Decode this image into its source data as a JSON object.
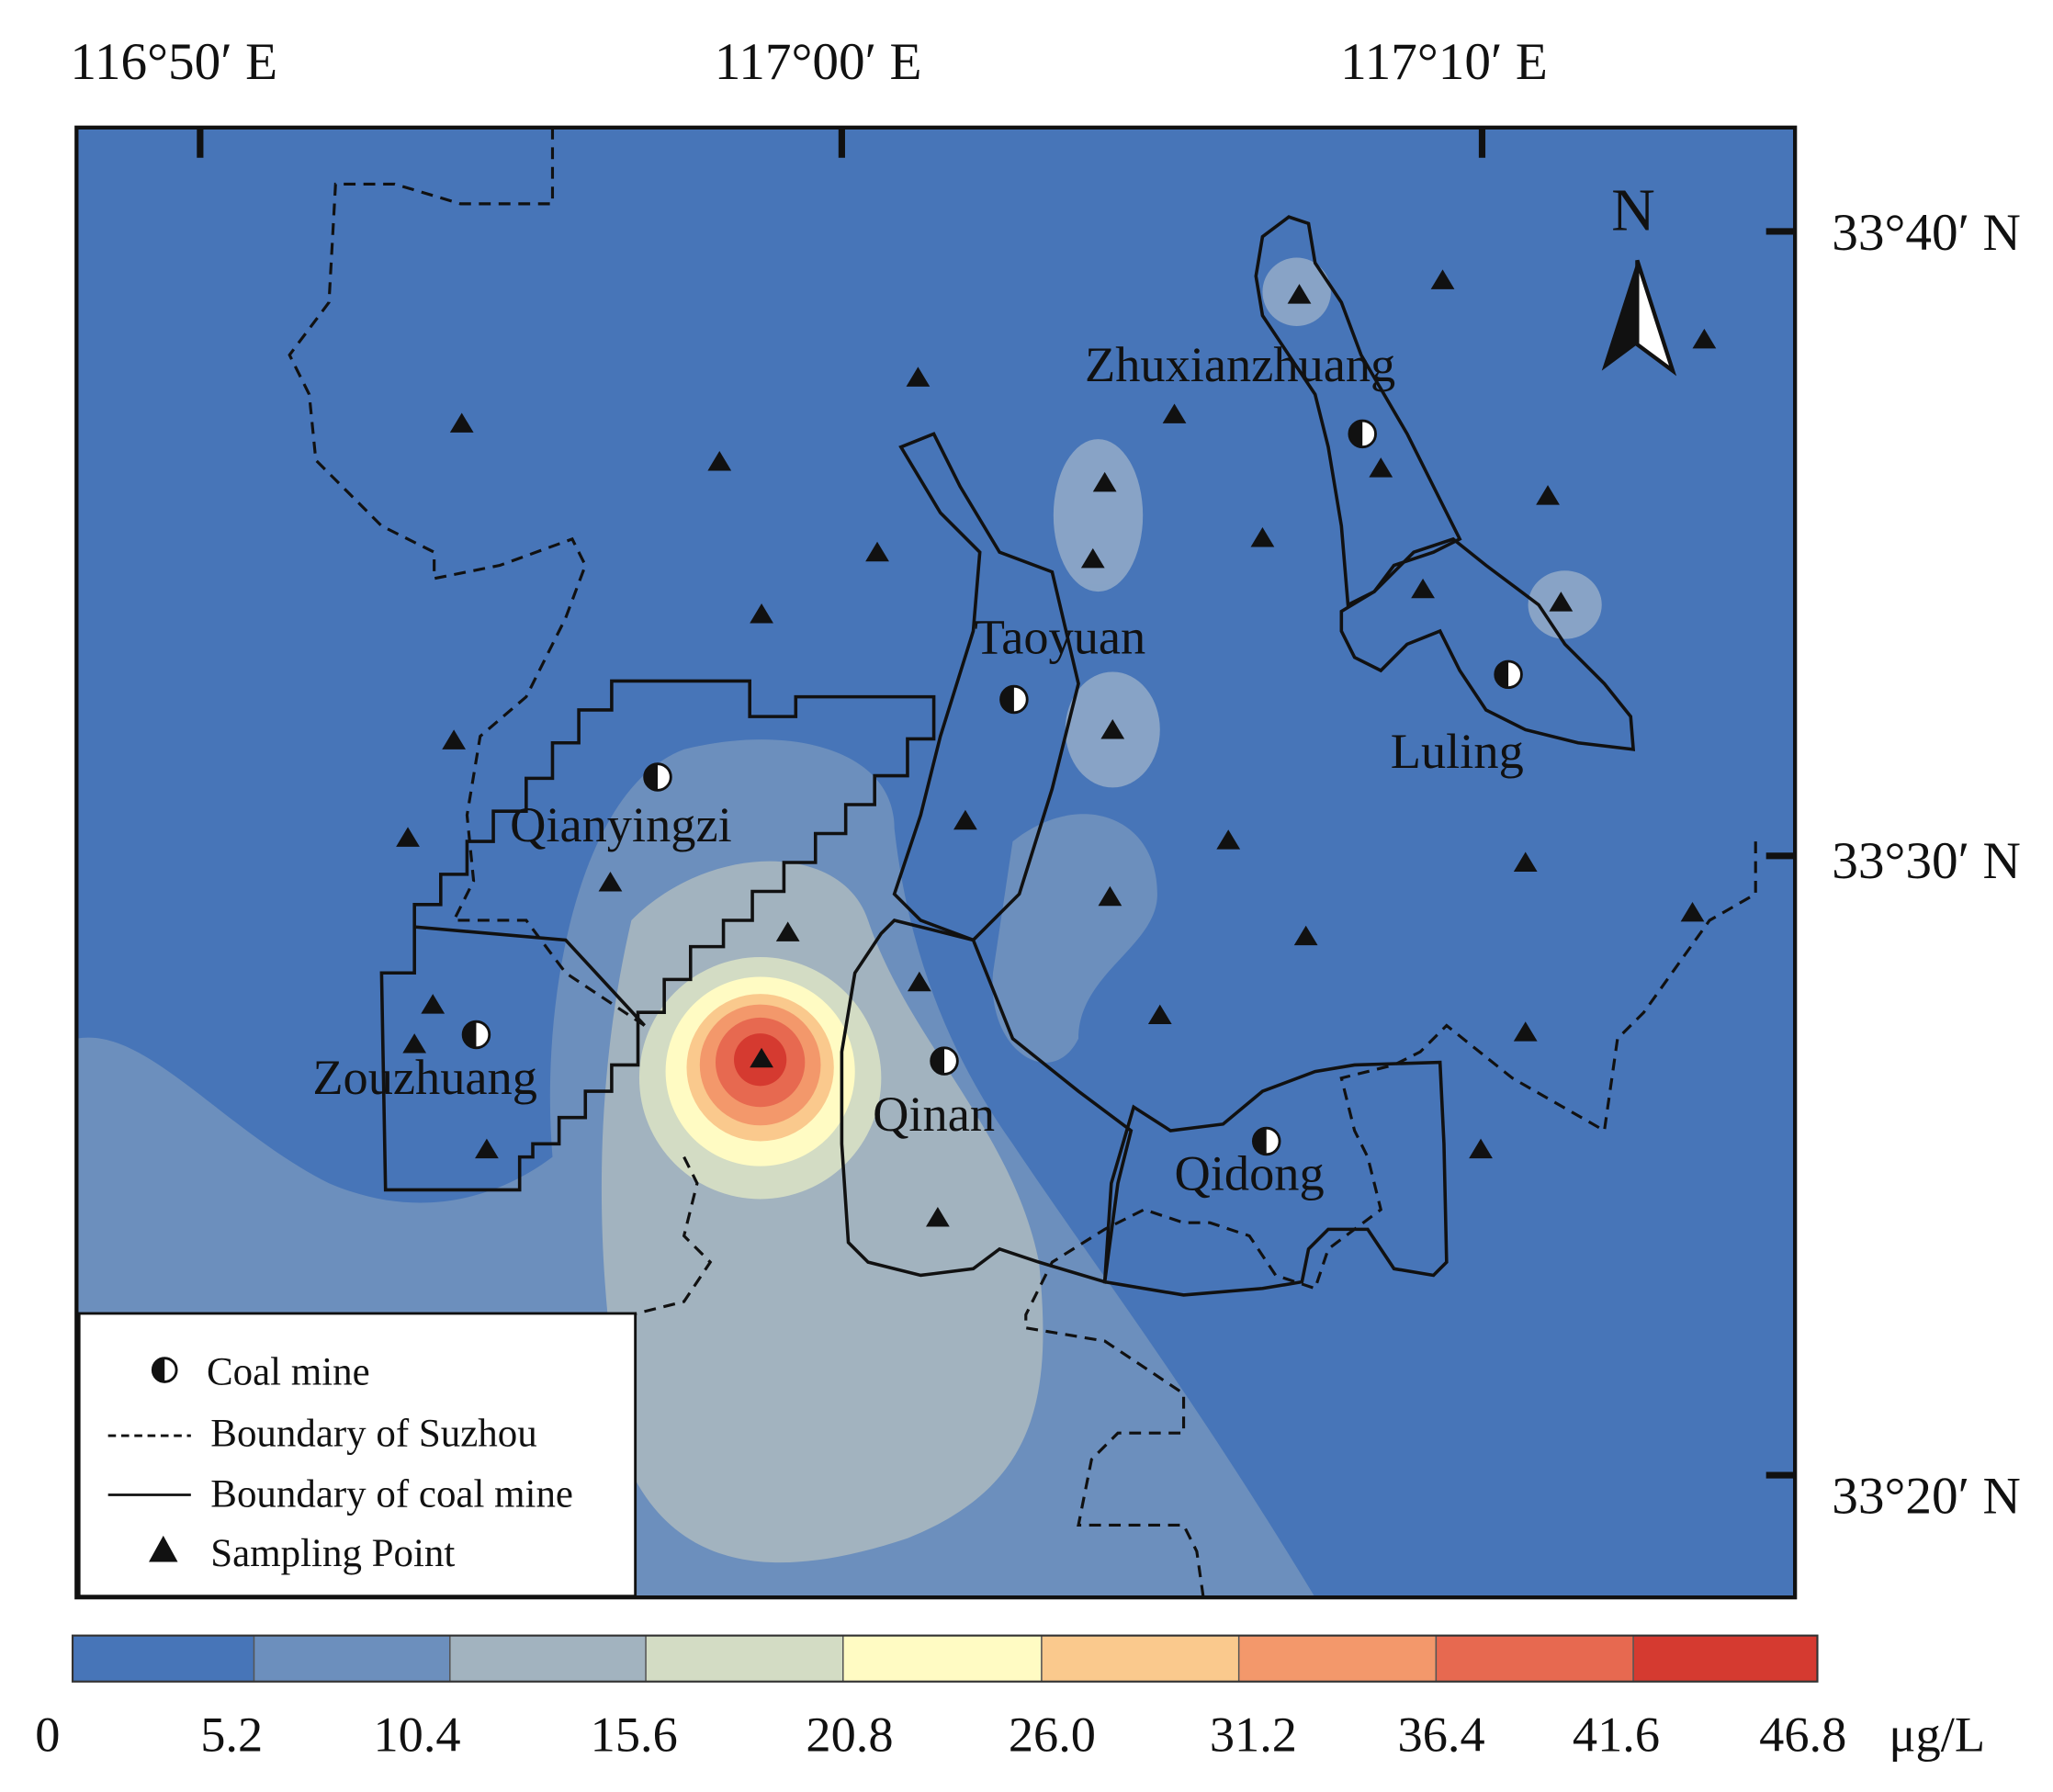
{
  "map": {
    "graticule": {
      "longitude_labels": [
        "116°50′ E",
        "117°00′ E",
        "117°10′ E"
      ],
      "latitude_labels": [
        "33°40′ N",
        "33°30′ N",
        "33°20′ N"
      ]
    },
    "north_arrow": {
      "label": "N",
      "icon": "north-arrow-icon"
    },
    "place_labels": {
      "zhuxianzhuang": "Zhuxianzhuang",
      "taoyuan": "Taoyuan",
      "luling": "Luling",
      "qianyingzi": "Qianyingzi",
      "zouzhuang": "Zouzhuang",
      "qinan": "Qinan",
      "qidong": "Qidong"
    },
    "colors": {
      "background": "#4775b8",
      "class_colors": [
        "#4775b8",
        "#6c8fbd",
        "#a2b3bf",
        "#d3dcc4",
        "#fffbc3",
        "#fac98d",
        "#f3986b",
        "#e76950",
        "#d53a30"
      ],
      "boundary": "#111111"
    }
  },
  "legend": {
    "coal_mine": "Coal mine",
    "suzhou_boundary": "Boundary of Suzhou",
    "mine_boundary": "Boundary of coal mine",
    "sampling_point": "Sampling Point",
    "icons": [
      "half-filled-circle-icon",
      "dashed-line-icon",
      "solid-line-icon",
      "filled-triangle-icon"
    ]
  },
  "colorbar": {
    "ticks": [
      "0",
      "5.2",
      "10.4",
      "15.6",
      "20.8",
      "26.0",
      "31.2",
      "36.4",
      "41.6",
      "46.8"
    ],
    "unit": "μg/L",
    "classes": [
      {
        "min": 0,
        "max": 5.2,
        "color": "#4775b8"
      },
      {
        "min": 5.2,
        "max": 10.4,
        "color": "#6c8fbd"
      },
      {
        "min": 10.4,
        "max": 15.6,
        "color": "#a2b3bf"
      },
      {
        "min": 15.6,
        "max": 20.8,
        "color": "#d3dcc4"
      },
      {
        "min": 20.8,
        "max": 26.0,
        "color": "#fffbc3"
      },
      {
        "min": 26.0,
        "max": 31.2,
        "color": "#fac98d"
      },
      {
        "min": 31.2,
        "max": 36.4,
        "color": "#f3986b"
      },
      {
        "min": 36.4,
        "max": 41.6,
        "color": "#e76950"
      },
      {
        "min": 41.6,
        "max": 46.8,
        "color": "#d53a30"
      }
    ]
  }
}
